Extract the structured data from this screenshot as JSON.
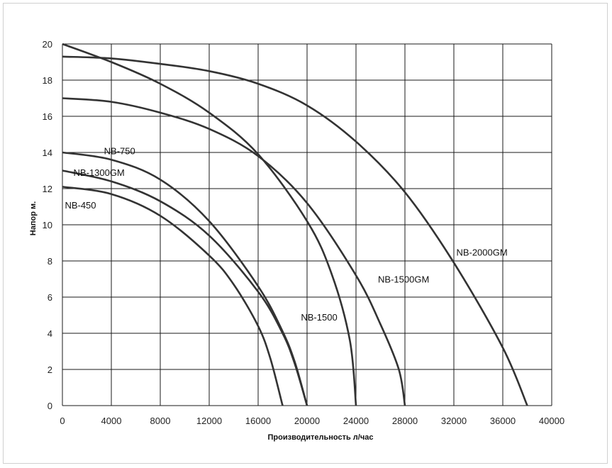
{
  "chart_data": {
    "type": "line",
    "xlabel": "Производительность  л/час",
    "ylabel": "Напор м.",
    "xlim": [
      0,
      40000
    ],
    "ylim": [
      0,
      20
    ],
    "grid": true,
    "x_ticks": [
      "0",
      "4000",
      "8000",
      "12000",
      "16000",
      "20000",
      "24000",
      "28000",
      "32000",
      "36000",
      "40000"
    ],
    "y_ticks": [
      "0",
      "2",
      "4",
      "6",
      "8",
      "10",
      "12",
      "14",
      "16",
      "18",
      "20"
    ],
    "series": [
      {
        "name": "NB-450",
        "x": [
          0,
          4000,
          8000,
          12000,
          14000,
          16000,
          17000,
          18000
        ],
        "y": [
          12.1,
          11.7,
          10.5,
          8.3,
          6.7,
          4.4,
          2.6,
          0
        ]
      },
      {
        "name": "NB-1300GM",
        "x": [
          0,
          4000,
          8000,
          12000,
          16000,
          18000,
          19000,
          20000
        ],
        "y": [
          13.0,
          12.4,
          11.3,
          9.4,
          6.3,
          4.0,
          2.3,
          0
        ]
      },
      {
        "name": "NB-750",
        "x": [
          0,
          4000,
          8000,
          12000,
          16000,
          18000,
          19000,
          20000
        ],
        "y": [
          14.0,
          13.6,
          12.5,
          10.2,
          6.6,
          4.1,
          2.4,
          0
        ]
      },
      {
        "name": "NB-1500",
        "x": [
          0,
          4000,
          8000,
          12000,
          16000,
          20000,
          22000,
          23500,
          24000
        ],
        "y": [
          20.0,
          19.0,
          17.8,
          16.2,
          13.9,
          10.2,
          7.3,
          3.6,
          0
        ]
      },
      {
        "name": "NB-1500GM",
        "x": [
          0,
          4000,
          8000,
          12000,
          16000,
          20000,
          24000,
          26000,
          27500,
          28000
        ],
        "y": [
          17.0,
          16.8,
          16.2,
          15.3,
          13.8,
          11.2,
          7.2,
          4.5,
          2.0,
          0
        ]
      },
      {
        "name": "NB-2000GM",
        "x": [
          0,
          4000,
          8000,
          12000,
          16000,
          20000,
          24000,
          28000,
          32000,
          36000,
          38000
        ],
        "y": [
          19.3,
          19.2,
          18.9,
          18.5,
          17.8,
          16.6,
          14.6,
          11.8,
          7.9,
          3.2,
          0
        ]
      }
    ],
    "labels": [
      {
        "text": "NB-750",
        "x": 3400,
        "y": 13.9
      },
      {
        "text": "NB-1300GM",
        "x": 900,
        "y": 12.7
      },
      {
        "text": "NB-450",
        "x": 200,
        "y": 10.9
      },
      {
        "text": "NB-1500",
        "x": 19500,
        "y": 4.7
      },
      {
        "text": "NB-1500GM",
        "x": 25800,
        "y": 6.8
      },
      {
        "text": "NB-2000GM",
        "x": 32200,
        "y": 8.3
      }
    ]
  }
}
